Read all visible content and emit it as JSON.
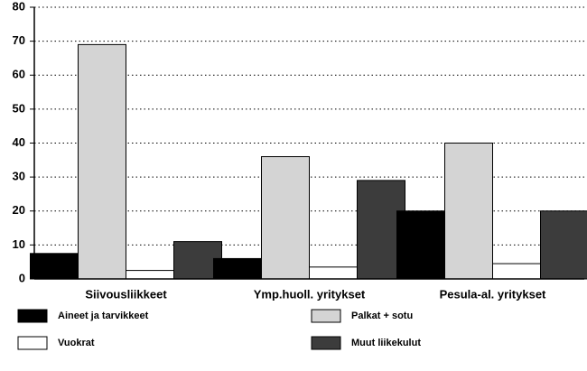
{
  "chart_data": {
    "type": "bar",
    "categories": [
      "Siivousliikkeet",
      "Ymp.huoll. yritykset",
      "Pesula-al. yritykset"
    ],
    "series": [
      {
        "name": "Aineet ja tarvikkeet",
        "color": "#000000",
        "values": [
          7.5,
          6,
          20
        ]
      },
      {
        "name": "Palkat + sotu",
        "color": "#d4d4d4",
        "values": [
          69,
          36,
          40
        ]
      },
      {
        "name": "Vuokrat",
        "color": "#ffffff",
        "values": [
          2.5,
          3.5,
          4.5
        ]
      },
      {
        "name": "Muut liikekulut",
        "color": "#3c3c3c",
        "values": [
          11,
          29,
          20
        ]
      }
    ],
    "ylim": [
      0,
      80
    ],
    "yticks": [
      0,
      10,
      20,
      30,
      40,
      50,
      60,
      70,
      80
    ],
    "grid": true
  }
}
